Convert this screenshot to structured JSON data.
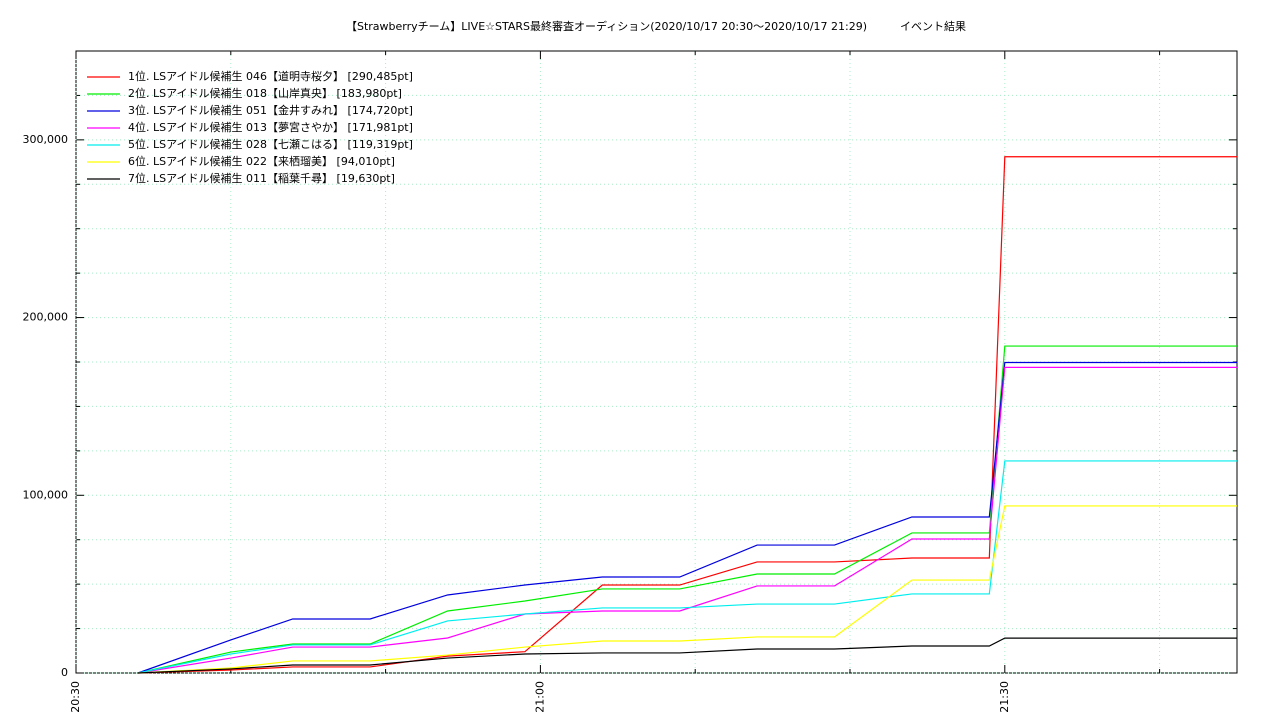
{
  "chart_data": {
    "type": "line",
    "title": "【Strawberryチーム】LIVE☆STARS最終審査オーディション(2020/10/17 20:30～2020/10/17 21:29)　　　イベント結果",
    "x": [
      "20:34",
      "20:40",
      "20:44",
      "20:49",
      "20:54",
      "20:59",
      "21:04",
      "21:09",
      "21:14",
      "21:19",
      "21:24",
      "21:29",
      "21:30",
      "21:45"
    ],
    "xlim": [
      "20:30",
      "21:45"
    ],
    "xticks": [
      "20:30",
      "21:00",
      "21:30"
    ],
    "x_minor_ticks": [
      "20:40",
      "20:50",
      "21:10",
      "21:20",
      "21:40"
    ],
    "ylim": [
      0,
      350000
    ],
    "yticks": [
      0,
      {
        "value": 100000,
        "label": "100,000"
      },
      {
        "value": 200000,
        "label": "200,000"
      },
      {
        "value": 300000,
        "label": "300,000"
      }
    ],
    "y_minor_ticks": [
      25000,
      50000,
      75000,
      125000,
      150000,
      175000,
      225000,
      250000,
      275000,
      325000
    ],
    "grid": true,
    "legend": "upper-left",
    "series": [
      {
        "name": "1位. LSアイドル候補生 046【道明寺桜夕】 [290,485pt]",
        "color": "#ff0000",
        "values": [
          0,
          1700,
          3400,
          3400,
          9500,
          12000,
          49500,
          49500,
          62500,
          62500,
          64700,
          64700,
          290485,
          290485
        ]
      },
      {
        "name": "2位. LSアイドル候補生 018【山岸真央】 [183,980pt]",
        "color": "#00ee00",
        "values": [
          0,
          11800,
          16300,
          16300,
          34900,
          40500,
          47300,
          47300,
          55700,
          55700,
          78800,
          78800,
          183980,
          183980
        ]
      },
      {
        "name": "3位. LSアイドル候補生 051【金井すみれ】 [174,720pt]",
        "color": "#0000dd",
        "values": [
          0,
          18600,
          30400,
          30400,
          43900,
          49500,
          54000,
          54000,
          72000,
          72000,
          87800,
          87800,
          174720,
          174720
        ]
      },
      {
        "name": "4位. LSアイドル候補生 013【夢宮さやか】 [171,981pt]",
        "color": "#ff00ff",
        "values": [
          0,
          8400,
          14600,
          14600,
          19700,
          33200,
          34900,
          34900,
          49000,
          49000,
          75400,
          75400,
          171981,
          171981
        ]
      },
      {
        "name": "5位. LSアイドル候補生 028【七瀬こはる】 [119,319pt]",
        "color": "#00eeee",
        "values": [
          0,
          10700,
          15800,
          15800,
          29300,
          33200,
          36600,
          36600,
          38800,
          38800,
          44500,
          44500,
          119319,
          119319
        ]
      },
      {
        "name": "6位. LSアイドル候補生 022【来栖瑠美】 [94,010pt]",
        "color": "#ffff00",
        "values": [
          0,
          2800,
          6800,
          6800,
          10100,
          14600,
          18000,
          18000,
          20300,
          20300,
          52300,
          52300,
          94010,
          94010
        ]
      },
      {
        "name": "7位. LSアイドル候補生 011【稲葉千尋】 [19,630pt]",
        "color": "#000000",
        "values": [
          0,
          2300,
          4500,
          4500,
          8400,
          10700,
          11300,
          11300,
          13500,
          13500,
          15200,
          15200,
          19630,
          19630
        ]
      }
    ]
  }
}
